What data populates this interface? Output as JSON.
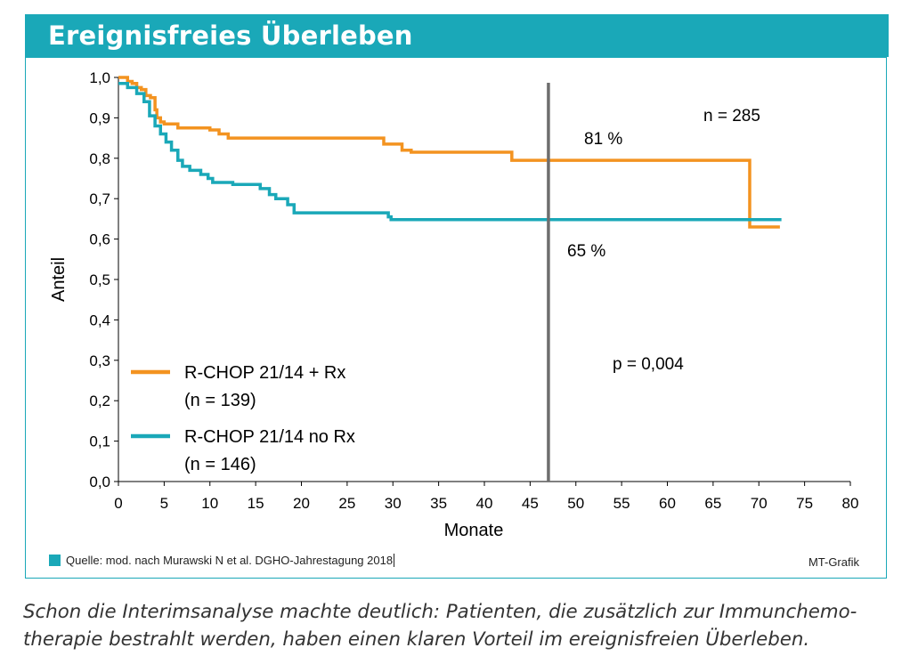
{
  "header": {
    "title": "Ereignisfreies Überleben"
  },
  "chart_data": {
    "type": "line",
    "step": true,
    "xlabel": "Monate",
    "ylabel": "Anteil",
    "xlim": [
      0,
      80
    ],
    "ylim": [
      0,
      1.0
    ],
    "x_ticks": [
      0,
      5,
      10,
      15,
      20,
      25,
      30,
      35,
      40,
      45,
      50,
      55,
      60,
      65,
      70,
      75,
      80
    ],
    "y_ticks": [
      0,
      0.1,
      0.2,
      0.3,
      0.4,
      0.5,
      0.6,
      0.7,
      0.8,
      0.9,
      1.0
    ],
    "x_tick_labels": [
      "0",
      "5",
      "10",
      "15",
      "20",
      "25",
      "30",
      "35",
      "40",
      "45",
      "50",
      "55",
      "60",
      "65",
      "70",
      "75",
      "80"
    ],
    "y_tick_labels": [
      "0,0",
      "0,1",
      "0,2",
      "0,3",
      "0,4",
      "0,5",
      "0,6",
      "0,7",
      "0,8",
      "0,9",
      "1,0"
    ],
    "series": [
      {
        "name": "R-CHOP 21/14 + Rx",
        "n_label": "(n = 139)",
        "color": "#f39320",
        "points": [
          [
            0,
            1.0
          ],
          [
            1,
            0.99
          ],
          [
            1.5,
            0.985
          ],
          [
            2,
            0.975
          ],
          [
            2.5,
            0.97
          ],
          [
            3,
            0.955
          ],
          [
            3.5,
            0.95
          ],
          [
            4,
            0.92
          ],
          [
            4.2,
            0.9
          ],
          [
            4.6,
            0.89
          ],
          [
            5,
            0.885
          ],
          [
            6.5,
            0.875
          ],
          [
            10,
            0.87
          ],
          [
            11,
            0.86
          ],
          [
            12,
            0.85
          ],
          [
            29,
            0.835
          ],
          [
            31,
            0.82
          ],
          [
            32,
            0.815
          ],
          [
            43,
            0.795
          ],
          [
            69,
            0.63
          ],
          [
            72.3,
            0.63
          ]
        ]
      },
      {
        "name": "R-CHOP 21/14 no Rx",
        "n_label": "(n = 146)",
        "color": "#1aa8b8",
        "points": [
          [
            0,
            0.985
          ],
          [
            1,
            0.975
          ],
          [
            2,
            0.96
          ],
          [
            2.8,
            0.94
          ],
          [
            3.4,
            0.905
          ],
          [
            4,
            0.88
          ],
          [
            4.6,
            0.86
          ],
          [
            5.2,
            0.84
          ],
          [
            5.8,
            0.82
          ],
          [
            6.5,
            0.795
          ],
          [
            7,
            0.78
          ],
          [
            7.8,
            0.77
          ],
          [
            9,
            0.76
          ],
          [
            9.8,
            0.75
          ],
          [
            10.3,
            0.74
          ],
          [
            12.5,
            0.735
          ],
          [
            15.5,
            0.725
          ],
          [
            16.5,
            0.71
          ],
          [
            17.2,
            0.7
          ],
          [
            18.5,
            0.685
          ],
          [
            19.2,
            0.665
          ],
          [
            29.5,
            0.655
          ],
          [
            29.8,
            0.648
          ],
          [
            40,
            0.648
          ],
          [
            72.3,
            0.652
          ]
        ]
      }
    ],
    "reference_line_x": 47,
    "annotations": {
      "pct_rx": "81 %",
      "pct_norx": "65 %",
      "n_total": "n = 285",
      "p_value": "p = 0,004"
    },
    "colors": {
      "frame": "#1aa8b8",
      "reference_line": "#6e6e6e",
      "axis": "#000000"
    }
  },
  "footer": {
    "source": "Quelle: mod. nach Murawski N et al. DGHO-Jahrestagung 2018",
    "credit": "MT-Grafik"
  },
  "caption": {
    "line1": "Schon die Interimsanalyse machte deutlich: Patienten, die zusätzlich zur Immunchemo-",
    "line2": "therapie bestrahlt werden, haben einen klaren Vorteil im ereignisfreien Überleben."
  }
}
